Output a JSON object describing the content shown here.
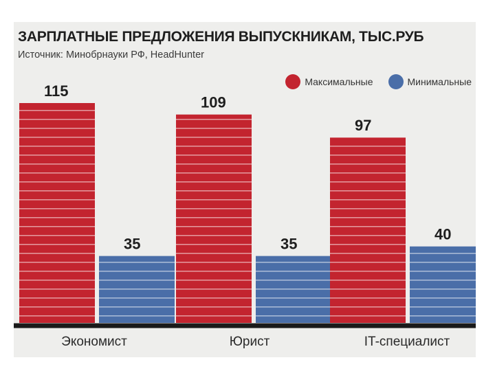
{
  "title": "ЗАРПЛАТНЫЕ ПРЕДЛОЖЕНИЯ ВЫПУСКНИКАМ, ТЫС.РУБ",
  "source": "Источник: Минобрнауки РФ, HeadHunter",
  "colors": {
    "max": "#c3242f",
    "min": "#4a6ea8",
    "axis": "#1a1a1a",
    "stripe": "#ffffff"
  },
  "chart_data": {
    "type": "bar",
    "title": "ЗАРПЛАТНЫЕ ПРЕДЛОЖЕНИЯ ВЫПУСКНИКАМ, ТЫС.РУБ",
    "categories": [
      "Экономист",
      "Юрист",
      "IT-специалист"
    ],
    "series": [
      {
        "name": "Максимальные",
        "values": [
          115,
          109,
          97
        ]
      },
      {
        "name": "Минимальные",
        "values": [
          35,
          35,
          40
        ]
      }
    ],
    "ylim": [
      0,
      115
    ],
    "grid": false,
    "legend": "top-right"
  }
}
